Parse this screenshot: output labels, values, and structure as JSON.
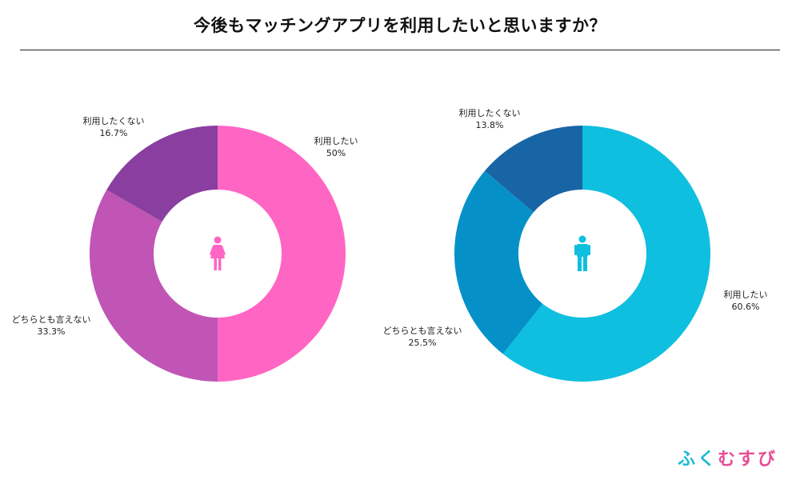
{
  "title": "今後もマッチングアプリを利用したいと思いますか？",
  "logo": {
    "text": "ふくむすび",
    "colors": [
      "#1bb8d6",
      "#e84c97"
    ]
  },
  "chart_data": [
    {
      "type": "pie",
      "donut": true,
      "icon": "female-icon",
      "icon_color": "#ff66c4",
      "slices": [
        {
          "label": "利用したい",
          "value": 50,
          "display": "50%",
          "color": "#ff66c4"
        },
        {
          "label": "どちらとも言えない",
          "value": 33.3,
          "display": "33.3%",
          "color": "#c055b6"
        },
        {
          "label": "利用したくない",
          "value": 16.7,
          "display": "16.7%",
          "color": "#8a3fa0"
        }
      ]
    },
    {
      "type": "pie",
      "donut": true,
      "icon": "male-icon",
      "icon_color": "#0fbfdf",
      "slices": [
        {
          "label": "利用したい",
          "value": 60.6,
          "display": "60.6%",
          "color": "#0fbfdf"
        },
        {
          "label": "どちらとも言えない",
          "value": 25.5,
          "display": "25.5%",
          "color": "#0591c8"
        },
        {
          "label": "利用したくない",
          "value": 13.8,
          "display": "13.8%",
          "color": "#1865a6"
        }
      ]
    }
  ]
}
